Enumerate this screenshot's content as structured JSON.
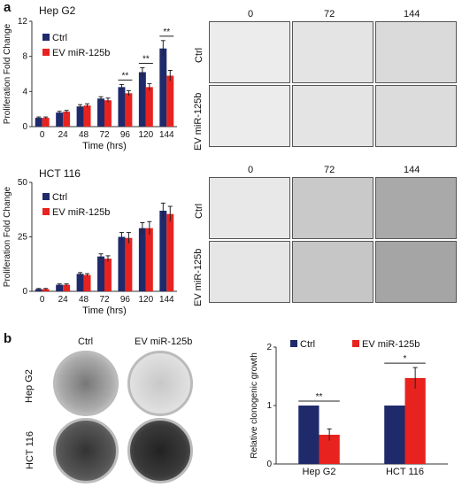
{
  "panel_a_label": "a",
  "panel_b_label": "b",
  "colors": {
    "ctrl": "#1f2a6b",
    "ev": "#e8231f"
  },
  "chart_data": [
    {
      "type": "bar",
      "title": "Hep G2",
      "xlabel": "Time (hrs)",
      "ylabel": "Proliferation Fold Change",
      "categories": [
        "0",
        "24",
        "48",
        "72",
        "96",
        "120",
        "144"
      ],
      "ylim": [
        0,
        12
      ],
      "yticks": [
        0,
        4,
        8,
        12
      ],
      "series": [
        {
          "name": "Ctrl",
          "values": [
            1.0,
            1.6,
            2.3,
            3.2,
            4.5,
            6.2,
            8.9
          ],
          "errors": [
            0.1,
            0.15,
            0.2,
            0.2,
            0.3,
            0.5,
            0.9
          ]
        },
        {
          "name": "EV miR-125b",
          "values": [
            1.0,
            1.7,
            2.4,
            3.0,
            3.8,
            4.5,
            5.8
          ],
          "errors": [
            0.1,
            0.15,
            0.2,
            0.25,
            0.3,
            0.4,
            0.6
          ]
        }
      ],
      "annotations": [
        {
          "category": "96",
          "text": "**"
        },
        {
          "category": "120",
          "text": "**"
        },
        {
          "category": "144",
          "text": "**"
        }
      ],
      "legend": "top-left"
    },
    {
      "type": "bar",
      "title": "HCT 116",
      "xlabel": "Time (hrs)",
      "ylabel": "Proliferation Fold Change",
      "categories": [
        "0",
        "24",
        "48",
        "72",
        "96",
        "120",
        "144"
      ],
      "ylim": [
        0,
        50
      ],
      "yticks": [
        0,
        25,
        50
      ],
      "series": [
        {
          "name": "Ctrl",
          "values": [
            1,
            3,
            8,
            16,
            25,
            29,
            37
          ],
          "errors": [
            0.3,
            0.4,
            0.6,
            1.2,
            2.0,
            2.5,
            3.5
          ]
        },
        {
          "name": "EV miR-125b",
          "values": [
            1,
            3,
            7.5,
            15,
            24.5,
            29,
            35.5
          ],
          "errors": [
            0.3,
            0.4,
            0.6,
            1.3,
            2.5,
            3.0,
            3.5
          ]
        }
      ],
      "legend": "top-left"
    },
    {
      "type": "bar",
      "title": "",
      "xlabel": "",
      "ylabel": "Relative clonogenic growth",
      "categories": [
        "Hep G2",
        "HCT 116"
      ],
      "ylim": [
        0,
        2
      ],
      "yticks": [
        0,
        1,
        2
      ],
      "series": [
        {
          "name": "Ctrl",
          "values": [
            1.0,
            1.0
          ],
          "errors": [
            0,
            0
          ]
        },
        {
          "name": "EV miR-125b",
          "values": [
            0.5,
            1.47
          ],
          "errors": [
            0.1,
            0.18
          ]
        }
      ],
      "annotations": [
        {
          "category": "Hep G2",
          "text": "**"
        },
        {
          "category": "HCT 116",
          "text": "*"
        }
      ],
      "legend": "top"
    }
  ],
  "microscopy": {
    "time_labels": [
      "0",
      "72",
      "144"
    ],
    "top_rows": [
      "Ctrl",
      "EV miR-125b"
    ],
    "bottom_rows": [
      "Ctrl",
      "EV miR-125b"
    ]
  },
  "plates": {
    "col_labels": [
      "Ctrl",
      "EV miR-125b"
    ],
    "row_labels": [
      "Hep G2",
      "HCT 116"
    ]
  }
}
